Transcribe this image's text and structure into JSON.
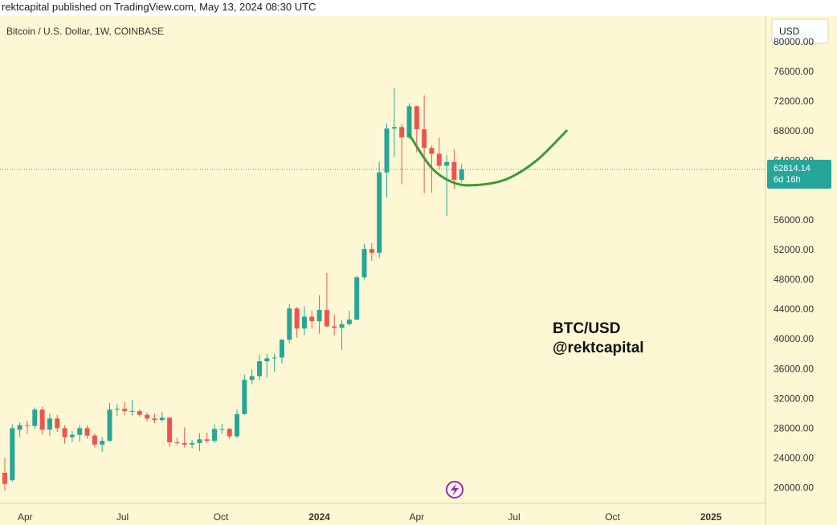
{
  "header": {
    "published": "rektcapital published on TradingView.com, May 13, 2024 08:30 UTC"
  },
  "symbol_label": "Bitcoin / U.S. Dollar, 1W, COINBASE",
  "currency": "USD",
  "annotation": {
    "line1": "BTC/USD",
    "line2": "@rektcapital"
  },
  "price_label": {
    "price": "62814.14",
    "countdown": "6d 16h"
  },
  "logo": "tradingview-bolt-icon",
  "colors": {
    "up": "#26a69a",
    "down": "#ef5350",
    "curve": "#3a9a3a",
    "background": "#fdf8d3",
    "price_label_bg": "#26a69a"
  },
  "chart_data": {
    "type": "candlestick",
    "title": "Bitcoin / U.S. Dollar, 1W, COINBASE",
    "interval": "1W",
    "y_axis": {
      "unit": "USD",
      "range": [
        18000,
        83000
      ],
      "ticks": [
        "80000.00",
        "76000.00",
        "72000.00",
        "68000.00",
        "64000.00",
        "56000.00",
        "52000.00",
        "48000.00",
        "44000.00",
        "40000.00",
        "36000.00",
        "32000.00",
        "28000.00",
        "24000.00",
        "20000.00"
      ]
    },
    "x_axis": {
      "start": "2023-03-13",
      "end": "2025-02-15",
      "ticks": [
        {
          "label": "Apr",
          "date": "2023-04-01"
        },
        {
          "label": "Jul",
          "date": "2023-07-01"
        },
        {
          "label": "Oct",
          "date": "2023-10-01"
        },
        {
          "label": "2024",
          "date": "2024-01-01",
          "bold": true
        },
        {
          "label": "Apr",
          "date": "2024-04-01"
        },
        {
          "label": "Jul",
          "date": "2024-07-01"
        },
        {
          "label": "Oct",
          "date": "2024-10-01"
        },
        {
          "label": "2025",
          "date": "2025-01-01",
          "bold": true
        }
      ]
    },
    "current_price": 62814.14,
    "candles": [
      {
        "date": "2023-03-13",
        "o": 22000,
        "h": 24000,
        "l": 19600,
        "c": 20500
      },
      {
        "date": "2023-03-20",
        "o": 21000,
        "h": 28500,
        "l": 20800,
        "c": 28000
      },
      {
        "date": "2023-03-27",
        "o": 27800,
        "h": 28800,
        "l": 26800,
        "c": 28400
      },
      {
        "date": "2023-04-03",
        "o": 28400,
        "h": 29000,
        "l": 27200,
        "c": 28300
      },
      {
        "date": "2023-04-10",
        "o": 28300,
        "h": 30800,
        "l": 27900,
        "c": 30500
      },
      {
        "date": "2023-04-17",
        "o": 30500,
        "h": 30900,
        "l": 27200,
        "c": 27800
      },
      {
        "date": "2023-04-24",
        "o": 27800,
        "h": 30000,
        "l": 27000,
        "c": 29300
      },
      {
        "date": "2023-05-01",
        "o": 29300,
        "h": 29800,
        "l": 27500,
        "c": 28000
      },
      {
        "date": "2023-05-08",
        "o": 28000,
        "h": 28400,
        "l": 25900,
        "c": 26800
      },
      {
        "date": "2023-05-15",
        "o": 26800,
        "h": 27600,
        "l": 26100,
        "c": 27100
      },
      {
        "date": "2023-05-22",
        "o": 27100,
        "h": 28400,
        "l": 26200,
        "c": 28000
      },
      {
        "date": "2023-05-29",
        "o": 28000,
        "h": 28400,
        "l": 26600,
        "c": 27000
      },
      {
        "date": "2023-06-05",
        "o": 27000,
        "h": 27300,
        "l": 25400,
        "c": 25800
      },
      {
        "date": "2023-06-12",
        "o": 25800,
        "h": 26800,
        "l": 24800,
        "c": 26300
      },
      {
        "date": "2023-06-19",
        "o": 26300,
        "h": 31400,
        "l": 26200,
        "c": 30500
      },
      {
        "date": "2023-06-26",
        "o": 30500,
        "h": 31200,
        "l": 29600,
        "c": 30600
      },
      {
        "date": "2023-07-03",
        "o": 30600,
        "h": 31500,
        "l": 29800,
        "c": 30300
      },
      {
        "date": "2023-07-10",
        "o": 30300,
        "h": 31800,
        "l": 29700,
        "c": 30300
      },
      {
        "date": "2023-07-17",
        "o": 30300,
        "h": 30500,
        "l": 29500,
        "c": 29800
      },
      {
        "date": "2023-07-24",
        "o": 29800,
        "h": 30100,
        "l": 28900,
        "c": 29300
      },
      {
        "date": "2023-07-31",
        "o": 29300,
        "h": 29900,
        "l": 28700,
        "c": 29100
      },
      {
        "date": "2023-08-07",
        "o": 29100,
        "h": 30200,
        "l": 28800,
        "c": 29400
      },
      {
        "date": "2023-08-14",
        "o": 29400,
        "h": 29500,
        "l": 25500,
        "c": 26100
      },
      {
        "date": "2023-08-21",
        "o": 26100,
        "h": 26700,
        "l": 25800,
        "c": 26000
      },
      {
        "date": "2023-08-28",
        "o": 26000,
        "h": 28100,
        "l": 25400,
        "c": 25800
      },
      {
        "date": "2023-09-04",
        "o": 25800,
        "h": 26400,
        "l": 25300,
        "c": 26000
      },
      {
        "date": "2023-09-11",
        "o": 26000,
        "h": 27300,
        "l": 24900,
        "c": 26500
      },
      {
        "date": "2023-09-18",
        "o": 26500,
        "h": 27400,
        "l": 26000,
        "c": 26300
      },
      {
        "date": "2023-09-25",
        "o": 26300,
        "h": 28500,
        "l": 26000,
        "c": 27900
      },
      {
        "date": "2023-10-02",
        "o": 27900,
        "h": 28600,
        "l": 27200,
        "c": 27900
      },
      {
        "date": "2023-10-09",
        "o": 27900,
        "h": 28000,
        "l": 26600,
        "c": 26900
      },
      {
        "date": "2023-10-16",
        "o": 26900,
        "h": 30500,
        "l": 26700,
        "c": 29900
      },
      {
        "date": "2023-10-23",
        "o": 29900,
        "h": 35200,
        "l": 29800,
        "c": 34500
      },
      {
        "date": "2023-10-30",
        "o": 34500,
        "h": 35900,
        "l": 33900,
        "c": 35000
      },
      {
        "date": "2023-11-06",
        "o": 35000,
        "h": 37900,
        "l": 34500,
        "c": 37000
      },
      {
        "date": "2023-11-13",
        "o": 37000,
        "h": 38000,
        "l": 34800,
        "c": 37400
      },
      {
        "date": "2023-11-20",
        "o": 37400,
        "h": 38000,
        "l": 35600,
        "c": 37500
      },
      {
        "date": "2023-11-27",
        "o": 37500,
        "h": 40000,
        "l": 36700,
        "c": 39900
      },
      {
        "date": "2023-12-04",
        "o": 39900,
        "h": 44700,
        "l": 39500,
        "c": 44100
      },
      {
        "date": "2023-12-11",
        "o": 44100,
        "h": 44300,
        "l": 40200,
        "c": 41400
      },
      {
        "date": "2023-12-18",
        "o": 41400,
        "h": 44400,
        "l": 40500,
        "c": 43000
      },
      {
        "date": "2023-12-25",
        "o": 43000,
        "h": 43800,
        "l": 41400,
        "c": 42400
      },
      {
        "date": "2024-01-01",
        "o": 42400,
        "h": 45900,
        "l": 40700,
        "c": 43900
      },
      {
        "date": "2024-01-08",
        "o": 43900,
        "h": 48900,
        "l": 41600,
        "c": 41700
      },
      {
        "date": "2024-01-15",
        "o": 41700,
        "h": 43300,
        "l": 40500,
        "c": 41500
      },
      {
        "date": "2024-01-22",
        "o": 41500,
        "h": 42500,
        "l": 38500,
        "c": 42000
      },
      {
        "date": "2024-01-29",
        "o": 42000,
        "h": 43800,
        "l": 41800,
        "c": 42600
      },
      {
        "date": "2024-02-05",
        "o": 42600,
        "h": 48500,
        "l": 42500,
        "c": 48300
      },
      {
        "date": "2024-02-12",
        "o": 48300,
        "h": 52800,
        "l": 48000,
        "c": 52100
      },
      {
        "date": "2024-02-19",
        "o": 52100,
        "h": 52900,
        "l": 50500,
        "c": 51600
      },
      {
        "date": "2024-02-26",
        "o": 51600,
        "h": 63800,
        "l": 50900,
        "c": 62400
      },
      {
        "date": "2024-03-04",
        "o": 62400,
        "h": 69000,
        "l": 59000,
        "c": 68300
      },
      {
        "date": "2024-03-11",
        "o": 68300,
        "h": 73800,
        "l": 64500,
        "c": 68500
      },
      {
        "date": "2024-03-18",
        "o": 68500,
        "h": 68900,
        "l": 60800,
        "c": 67100
      },
      {
        "date": "2024-03-25",
        "o": 67100,
        "h": 71700,
        "l": 66900,
        "c": 71300
      },
      {
        "date": "2024-04-01",
        "o": 71300,
        "h": 71400,
        "l": 65100,
        "c": 68200
      },
      {
        "date": "2024-04-08",
        "o": 68200,
        "h": 72800,
        "l": 59600,
        "c": 65700
      },
      {
        "date": "2024-04-15",
        "o": 65700,
        "h": 66000,
        "l": 59700,
        "c": 64900
      },
      {
        "date": "2024-04-22",
        "o": 64900,
        "h": 67100,
        "l": 62800,
        "c": 63300
      },
      {
        "date": "2024-04-29",
        "o": 63300,
        "h": 64700,
        "l": 56500,
        "c": 63800
      },
      {
        "date": "2024-05-06",
        "o": 63800,
        "h": 65500,
        "l": 60200,
        "c": 61400
      },
      {
        "date": "2024-05-13",
        "o": 61400,
        "h": 63500,
        "l": 61000,
        "c": 62814
      }
    ],
    "projection_curve": [
      {
        "date": "2024-03-25",
        "y": 67500
      },
      {
        "date": "2024-04-15",
        "y": 63000
      },
      {
        "date": "2024-05-06",
        "y": 61000
      },
      {
        "date": "2024-05-27",
        "y": 60700
      },
      {
        "date": "2024-06-24",
        "y": 61500
      },
      {
        "date": "2024-07-22",
        "y": 64000
      },
      {
        "date": "2024-08-19",
        "y": 68000
      }
    ]
  }
}
